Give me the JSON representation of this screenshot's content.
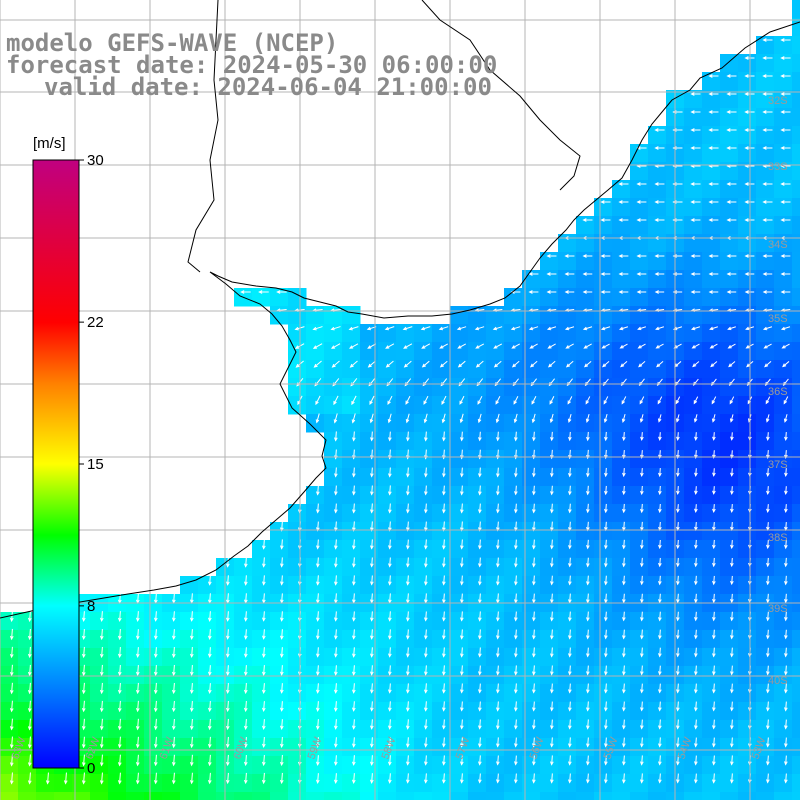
{
  "title": {
    "model": "modelo GEFS-WAVE (NCEP)",
    "forecast": "forecast date: 2024-05-30 06:00:00",
    "valid": "valid date: 2024-06-04 21:00:00"
  },
  "colorbar": {
    "unit": "[m/s]",
    "ticks": [
      "30",
      "22",
      "15",
      "8",
      "0"
    ],
    "tick_values": [
      30,
      22,
      15,
      8,
      0
    ],
    "range": [
      0,
      30
    ],
    "colors": [
      "#0000ff",
      "#0080ff",
      "#00ffff",
      "#00ff00",
      "#ffff00",
      "#ff8000",
      "#ff0000",
      "#c00080"
    ]
  },
  "map": {
    "lat_labels": [
      "32S",
      "33S",
      "34S",
      "35S",
      "36S",
      "37S",
      "38S",
      "39S",
      "40S"
    ],
    "lon_labels": [
      "63W",
      "62W",
      "61W",
      "60W",
      "59W",
      "58W",
      "57W",
      "56W",
      "55W",
      "54W",
      "53W"
    ],
    "field": "wind speed and direction",
    "land_color": "#ffffff",
    "arrow_color": "#ffffff",
    "coast_color": "#000000",
    "grid_color": "#b4b4b4"
  }
}
